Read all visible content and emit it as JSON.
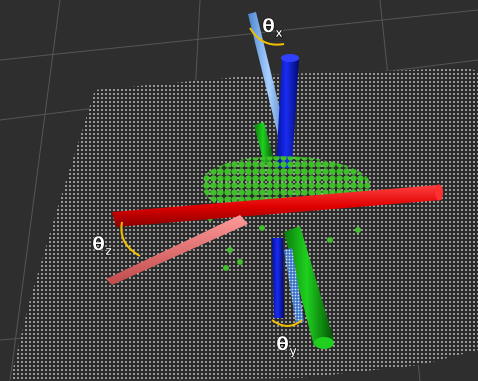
{
  "labels": [
    {
      "symbol": "θ",
      "subscript": "x"
    },
    {
      "symbol": "θ",
      "subscript": "y"
    },
    {
      "symbol": "θ",
      "subscript": "z"
    }
  ]
}
